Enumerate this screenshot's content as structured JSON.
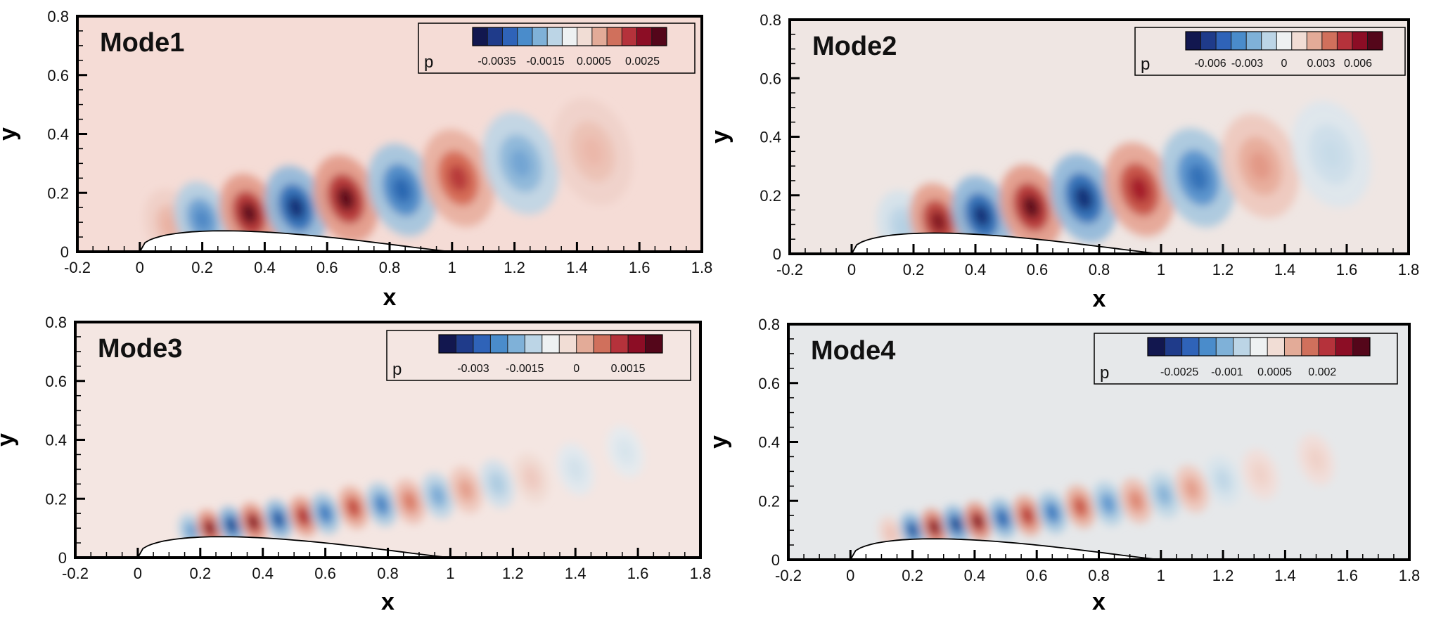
{
  "chart_data": [
    {
      "type": "heatmap",
      "title": "Mode1",
      "xlabel": "x",
      "ylabel": "y",
      "xlim": [
        -0.2,
        1.8
      ],
      "ylim": [
        0,
        0.8
      ],
      "xticks": [
        "-0.2",
        "0",
        "0.2",
        "0.4",
        "0.6",
        "0.8",
        "1",
        "1.2",
        "1.4",
        "1.6",
        "1.8"
      ],
      "yticks": [
        "0",
        "0.2",
        "0.4",
        "0.6",
        "0.8"
      ],
      "background_color": "#f5dcd6",
      "legend": {
        "variable": "p",
        "ticks": [
          "-0.0035",
          "-0.0015",
          "0.0005",
          "0.0025"
        ],
        "range": [
          -0.0045,
          0.0035
        ],
        "placement": "top-right"
      },
      "structures": [
        {
          "x": 0.1,
          "y": 0.09,
          "sign": 1,
          "strength": 0.35
        },
        {
          "x": 0.2,
          "y": 0.11,
          "sign": -1,
          "strength": 0.7
        },
        {
          "x": 0.35,
          "y": 0.13,
          "sign": 1,
          "strength": 1.0
        },
        {
          "x": 0.5,
          "y": 0.15,
          "sign": -1,
          "strength": 1.0
        },
        {
          "x": 0.66,
          "y": 0.18,
          "sign": 1,
          "strength": 1.0
        },
        {
          "x": 0.84,
          "y": 0.21,
          "sign": -1,
          "strength": 0.85
        },
        {
          "x": 1.02,
          "y": 0.25,
          "sign": 1,
          "strength": 0.8
        },
        {
          "x": 1.22,
          "y": 0.3,
          "sign": -1,
          "strength": 0.55
        },
        {
          "x": 1.45,
          "y": 0.34,
          "sign": 1,
          "strength": 0.3
        }
      ]
    },
    {
      "type": "heatmap",
      "title": "Mode2",
      "xlabel": "x",
      "ylabel": "y",
      "xlim": [
        -0.2,
        1.8
      ],
      "ylim": [
        0,
        0.8
      ],
      "xticks": [
        "-0.2",
        "0",
        "0.2",
        "0.4",
        "0.6",
        "0.8",
        "1",
        "1.2",
        "1.4",
        "1.6",
        "1.8"
      ],
      "yticks": [
        "0",
        "0.2",
        "0.4",
        "0.6",
        "0.8"
      ],
      "background_color": "#efe6e3",
      "legend": {
        "variable": "p",
        "ticks": [
          "-0.006",
          "-0.003",
          "0",
          "0.003",
          "0.006"
        ],
        "range": [
          -0.008,
          0.008
        ],
        "placement": "top-right"
      },
      "structures": [
        {
          "x": 0.17,
          "y": 0.09,
          "sign": -1,
          "strength": 0.3
        },
        {
          "x": 0.28,
          "y": 0.11,
          "sign": 1,
          "strength": 0.95
        },
        {
          "x": 0.42,
          "y": 0.13,
          "sign": -1,
          "strength": 1.0
        },
        {
          "x": 0.58,
          "y": 0.16,
          "sign": 1,
          "strength": 1.0
        },
        {
          "x": 0.75,
          "y": 0.19,
          "sign": -1,
          "strength": 1.0
        },
        {
          "x": 0.93,
          "y": 0.22,
          "sign": 1,
          "strength": 0.9
        },
        {
          "x": 1.12,
          "y": 0.26,
          "sign": -1,
          "strength": 0.8
        },
        {
          "x": 1.32,
          "y": 0.3,
          "sign": 1,
          "strength": 0.45
        },
        {
          "x": 1.55,
          "y": 0.34,
          "sign": -1,
          "strength": 0.2
        }
      ]
    },
    {
      "type": "heatmap",
      "title": "Mode3",
      "xlabel": "x",
      "ylabel": "y",
      "xlim": [
        -0.2,
        1.8
      ],
      "ylim": [
        0,
        0.8
      ],
      "xticks": [
        "-0.2",
        "0",
        "0.2",
        "0.4",
        "0.6",
        "0.8",
        "1",
        "1.2",
        "1.4",
        "1.6",
        "1.8"
      ],
      "yticks": [
        "0",
        "0.2",
        "0.4",
        "0.6",
        "0.8"
      ],
      "background_color": "#f4e6e2",
      "legend": {
        "variable": "p",
        "ticks": [
          "-0.003",
          "-0.0015",
          "0",
          "0.0015"
        ],
        "range": [
          -0.004,
          0.0025
        ],
        "placement": "top-right"
      },
      "structures": [
        {
          "x": 0.17,
          "y": 0.09,
          "sign": -1,
          "strength": 0.6
        },
        {
          "x": 0.23,
          "y": 0.1,
          "sign": 1,
          "strength": 1.0
        },
        {
          "x": 0.3,
          "y": 0.11,
          "sign": -1,
          "strength": 1.0
        },
        {
          "x": 0.37,
          "y": 0.12,
          "sign": 1,
          "strength": 1.0
        },
        {
          "x": 0.45,
          "y": 0.13,
          "sign": -1,
          "strength": 0.95
        },
        {
          "x": 0.53,
          "y": 0.14,
          "sign": 1,
          "strength": 0.9
        },
        {
          "x": 0.6,
          "y": 0.15,
          "sign": -1,
          "strength": 0.8
        },
        {
          "x": 0.69,
          "y": 0.17,
          "sign": 1,
          "strength": 0.8
        },
        {
          "x": 0.78,
          "y": 0.18,
          "sign": -1,
          "strength": 0.75
        },
        {
          "x": 0.87,
          "y": 0.19,
          "sign": 1,
          "strength": 0.6
        },
        {
          "x": 0.96,
          "y": 0.21,
          "sign": -1,
          "strength": 0.55
        },
        {
          "x": 1.05,
          "y": 0.23,
          "sign": 1,
          "strength": 0.45
        },
        {
          "x": 1.15,
          "y": 0.25,
          "sign": -1,
          "strength": 0.35
        },
        {
          "x": 1.26,
          "y": 0.27,
          "sign": 1,
          "strength": 0.2
        },
        {
          "x": 1.4,
          "y": 0.3,
          "sign": -1,
          "strength": 0.15
        },
        {
          "x": 1.56,
          "y": 0.36,
          "sign": -1,
          "strength": 0.12
        }
      ]
    },
    {
      "type": "heatmap",
      "title": "Mode4",
      "xlabel": "x",
      "ylabel": "y",
      "xlim": [
        -0.2,
        1.8
      ],
      "ylim": [
        0,
        0.8
      ],
      "xticks": [
        "-0.2",
        "0",
        "0.2",
        "0.4",
        "0.6",
        "0.8",
        "1",
        "1.2",
        "1.4",
        "1.6",
        "1.8"
      ],
      "yticks": [
        "0",
        "0.2",
        "0.4",
        "0.6",
        "0.8"
      ],
      "background_color": "#e6e8ea",
      "legend": {
        "variable": "p",
        "ticks": [
          "-0.0025",
          "-0.001",
          "0.0005",
          "0.002"
        ],
        "range": [
          -0.0035,
          0.0035
        ],
        "placement": "top-right"
      },
      "structures": [
        {
          "x": 0.13,
          "y": 0.09,
          "sign": 1,
          "strength": 0.25
        },
        {
          "x": 0.2,
          "y": 0.1,
          "sign": -1,
          "strength": 0.95
        },
        {
          "x": 0.27,
          "y": 0.11,
          "sign": 1,
          "strength": 1.0
        },
        {
          "x": 0.34,
          "y": 0.12,
          "sign": -1,
          "strength": 1.0
        },
        {
          "x": 0.41,
          "y": 0.13,
          "sign": 1,
          "strength": 1.0
        },
        {
          "x": 0.49,
          "y": 0.14,
          "sign": -1,
          "strength": 0.9
        },
        {
          "x": 0.57,
          "y": 0.15,
          "sign": 1,
          "strength": 0.85
        },
        {
          "x": 0.65,
          "y": 0.16,
          "sign": -1,
          "strength": 0.8
        },
        {
          "x": 0.74,
          "y": 0.18,
          "sign": 1,
          "strength": 0.75
        },
        {
          "x": 0.83,
          "y": 0.19,
          "sign": -1,
          "strength": 0.65
        },
        {
          "x": 0.92,
          "y": 0.2,
          "sign": 1,
          "strength": 0.55
        },
        {
          "x": 1.01,
          "y": 0.22,
          "sign": -1,
          "strength": 0.5
        },
        {
          "x": 1.1,
          "y": 0.24,
          "sign": 1,
          "strength": 0.45
        },
        {
          "x": 1.2,
          "y": 0.27,
          "sign": -1,
          "strength": 0.25
        },
        {
          "x": 1.32,
          "y": 0.29,
          "sign": 1,
          "strength": 0.15
        },
        {
          "x": 1.5,
          "y": 0.34,
          "sign": 1,
          "strength": 0.15
        }
      ]
    }
  ]
}
